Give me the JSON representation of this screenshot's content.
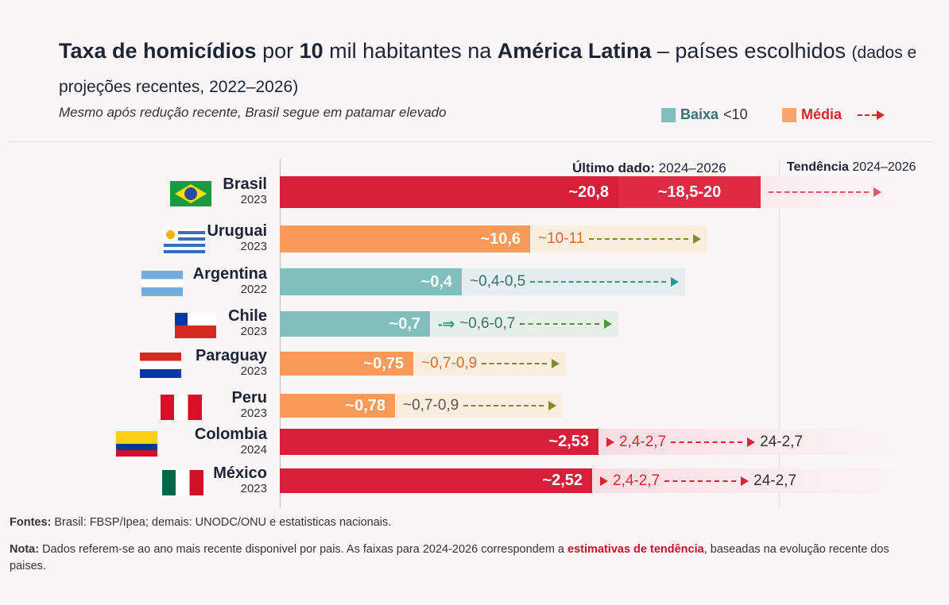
{
  "title": {
    "b1": "Taxa de homicídios",
    "t1": " por ",
    "b2": "10",
    "t2": " mil habitantes na ",
    "b3": "América Latina",
    "t3": " – países escolhidos ",
    "small": "(dados e projeções recentes, 2022–2026)"
  },
  "subtitle": "Mesmo após redução recente, Brasil segue em patamar elevado",
  "legend": [
    {
      "label": "Baixa",
      "extra": "<10",
      "color": "#7fbfbc",
      "text_color": "#3a6f74"
    },
    {
      "label": "Média",
      "color": "#f9a66a",
      "text_color": "#d9262f"
    }
  ],
  "header": {
    "last_b": "Último dado:",
    "last_t": " 2024–2026",
    "trend_b": "Tendência",
    "trend_t": " 2024–2026"
  },
  "chart_data": {
    "type": "bar",
    "title": "Taxa de homicídios por 10 mil habitantes na América Latina – países escolhidos",
    "ylabel": "",
    "xlabel": "",
    "rows": [
      {
        "country": "Brasil",
        "year": "2023",
        "value": "~20,8",
        "range": "~18,5-20",
        "trend": "",
        "category": "alta",
        "flag": "brazil"
      },
      {
        "country": "Uruguai",
        "year": "2023",
        "value": "~10,6",
        "range": "~10-11",
        "trend": "",
        "category": "média",
        "flag": "uruguay"
      },
      {
        "country": "Argentina",
        "year": "2022",
        "value": "~0,4",
        "range": "~0,4-0,5",
        "trend": "",
        "category": "baixa",
        "flag": "argentina"
      },
      {
        "country": "Chile",
        "year": "2023",
        "value": "~0,7",
        "range": "~0,6-0,7",
        "trend": "",
        "category": "baixa",
        "flag": "chile"
      },
      {
        "country": "Paraguay",
        "year": "2023",
        "value": "~0,75",
        "range": "~0,7-0,9",
        "trend": "",
        "category": "média",
        "flag": "paraguay"
      },
      {
        "country": "Peru",
        "year": "2023",
        "value": "~0,78",
        "range": "~0,7-0,9",
        "trend": "",
        "category": "média",
        "flag": "peru"
      },
      {
        "country": "Colombia",
        "year": "2024",
        "value": "~2,53",
        "range": "2,4-2,7",
        "trend": "24-2,7",
        "category": "alta",
        "flag": "colombia"
      },
      {
        "country": "México",
        "year": "2023",
        "value": "~2,52",
        "range": "2,4-2,7",
        "trend": "24-2,7",
        "category": "alta",
        "flag": "mexico"
      }
    ]
  },
  "footer": {
    "fontes_b": "Fontes:",
    "fontes": " Brasil: FBSP/Ipea; demais: UNODC/ONU e estatisticas nacionais.",
    "nota_b": "Nota:",
    "nota": " Dados referem-se ao ano mais recente disponivel por pais. As faixas para 2024-2026 correspondem a ",
    "nota_hl": "estimativas de tendência",
    "nota_end": ", baseadas na evolução recente dos paises."
  }
}
